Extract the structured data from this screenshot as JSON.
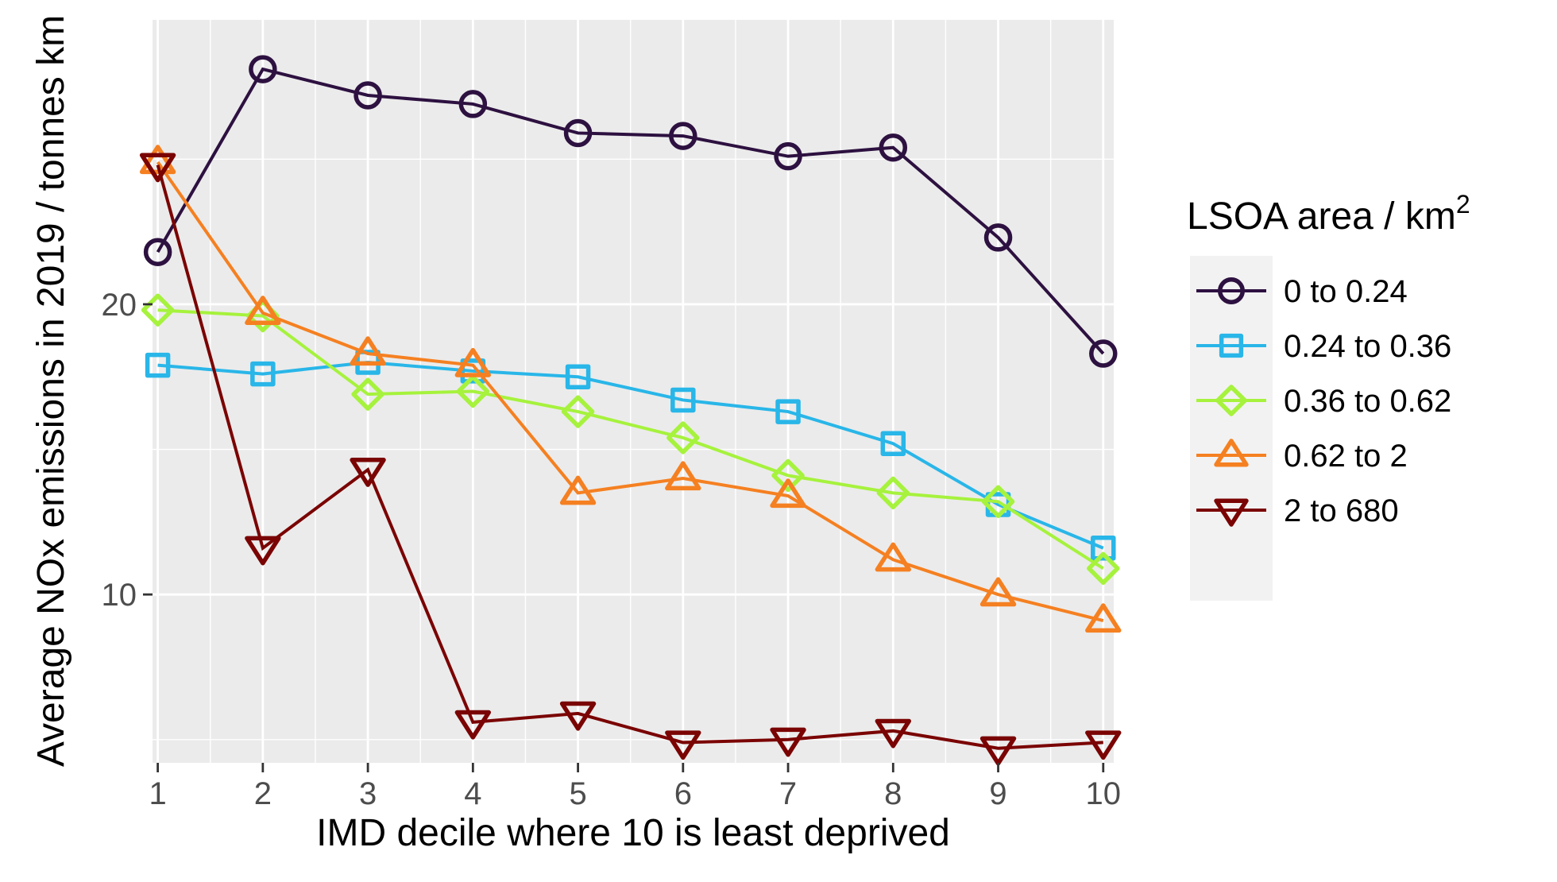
{
  "chart_data": {
    "type": "line",
    "xlabel": "IMD decile where 10 is least deprived",
    "ylabel": "Average  NOx emissions in  2019 / tonnes  km",
    "x": [
      1,
      2,
      3,
      4,
      5,
      6,
      7,
      8,
      9,
      10
    ],
    "ylim": [
      4.2,
      29.8
    ],
    "xlim": [
      0.95,
      10.1
    ],
    "yticks": [
      10,
      20
    ],
    "ytick_labels": [
      "10",
      "20"
    ],
    "xtick_labels": [
      "1",
      "2",
      "3",
      "4",
      "5",
      "6",
      "7",
      "8",
      "9",
      "10"
    ],
    "grid": true,
    "legend": {
      "title": "LSOA area /  km",
      "title_superscript": "2",
      "placement": "right"
    },
    "series": [
      {
        "name": "0 to 0.24",
        "color": "#2d1140",
        "marker": "circle",
        "values": [
          21.8,
          28.1,
          27.2,
          26.9,
          25.9,
          25.8,
          25.1,
          25.4,
          22.3,
          18.3
        ]
      },
      {
        "name": "0.24 to 0.36",
        "color": "#29b6e8",
        "marker": "square",
        "values": [
          17.9,
          17.6,
          18.0,
          17.7,
          17.5,
          16.7,
          16.3,
          15.2,
          13.1,
          11.6
        ]
      },
      {
        "name": "0.36 to 0.62",
        "color": "#a6f23d",
        "marker": "diamond",
        "values": [
          19.8,
          19.6,
          16.9,
          17.0,
          16.3,
          15.4,
          14.1,
          13.5,
          13.2,
          10.9
        ]
      },
      {
        "name": "0.62 to 2",
        "color": "#f58021",
        "marker": "triangle-up",
        "values": [
          24.9,
          19.7,
          18.3,
          17.9,
          13.5,
          14.0,
          13.4,
          11.2,
          10.0,
          9.1
        ]
      },
      {
        "name": "2 to 680",
        "color": "#7a0403",
        "marker": "triangle-down",
        "values": [
          24.8,
          11.6,
          14.3,
          5.6,
          5.9,
          4.9,
          5.0,
          5.3,
          4.7,
          4.9
        ]
      }
    ]
  }
}
